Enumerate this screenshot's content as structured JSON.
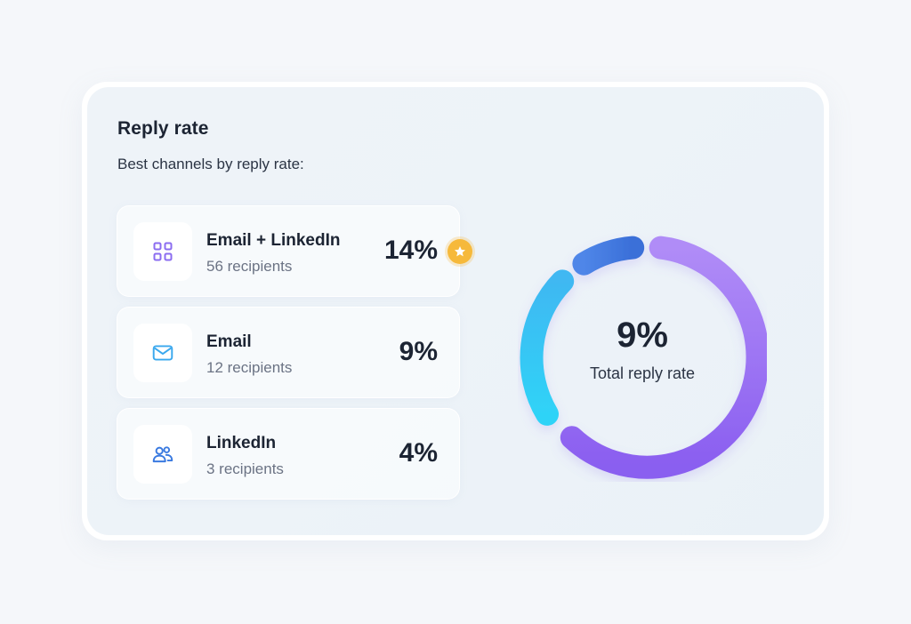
{
  "header": {
    "title": "Reply rate",
    "subtitle": "Best channels by reply rate:"
  },
  "channels": [
    {
      "name": "Email + LinkedIn",
      "recipients": "56 recipients",
      "rate": "14%",
      "icon": "grid-icon",
      "icon_color": "#8b6cf0",
      "top_pick": true,
      "badge_icon": "star-icon",
      "badge_color": "#f6b93b"
    },
    {
      "name": "Email",
      "recipients": "12 recipients",
      "rate": "9%",
      "icon": "mail-icon",
      "icon_color": "#3aa8ee"
    },
    {
      "name": "LinkedIn",
      "recipients": "3 recipients",
      "rate": "4%",
      "icon": "users-icon",
      "icon_color": "#3a7ae0"
    }
  ],
  "total": {
    "value": "9%",
    "label": "Total reply rate"
  },
  "colors": {
    "accent_purple": "#9b6cf5",
    "accent_cyan": "#35c9f5",
    "accent_blue": "#4a7fe0",
    "text_dark": "#1c2433",
    "text_muted": "#6b7384"
  }
}
